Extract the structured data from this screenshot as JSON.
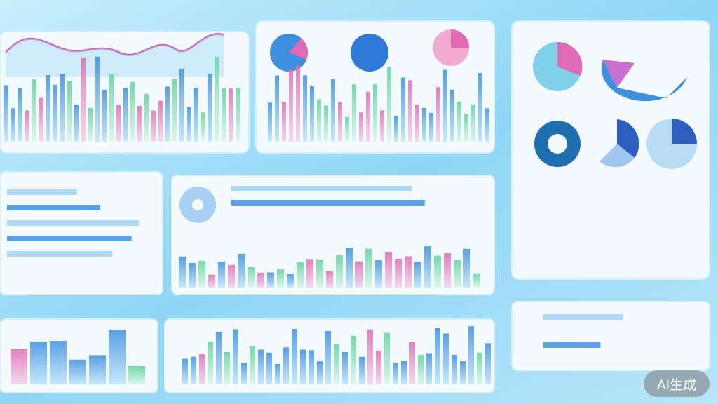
{
  "watermark": {
    "text": "AI生成"
  }
}
